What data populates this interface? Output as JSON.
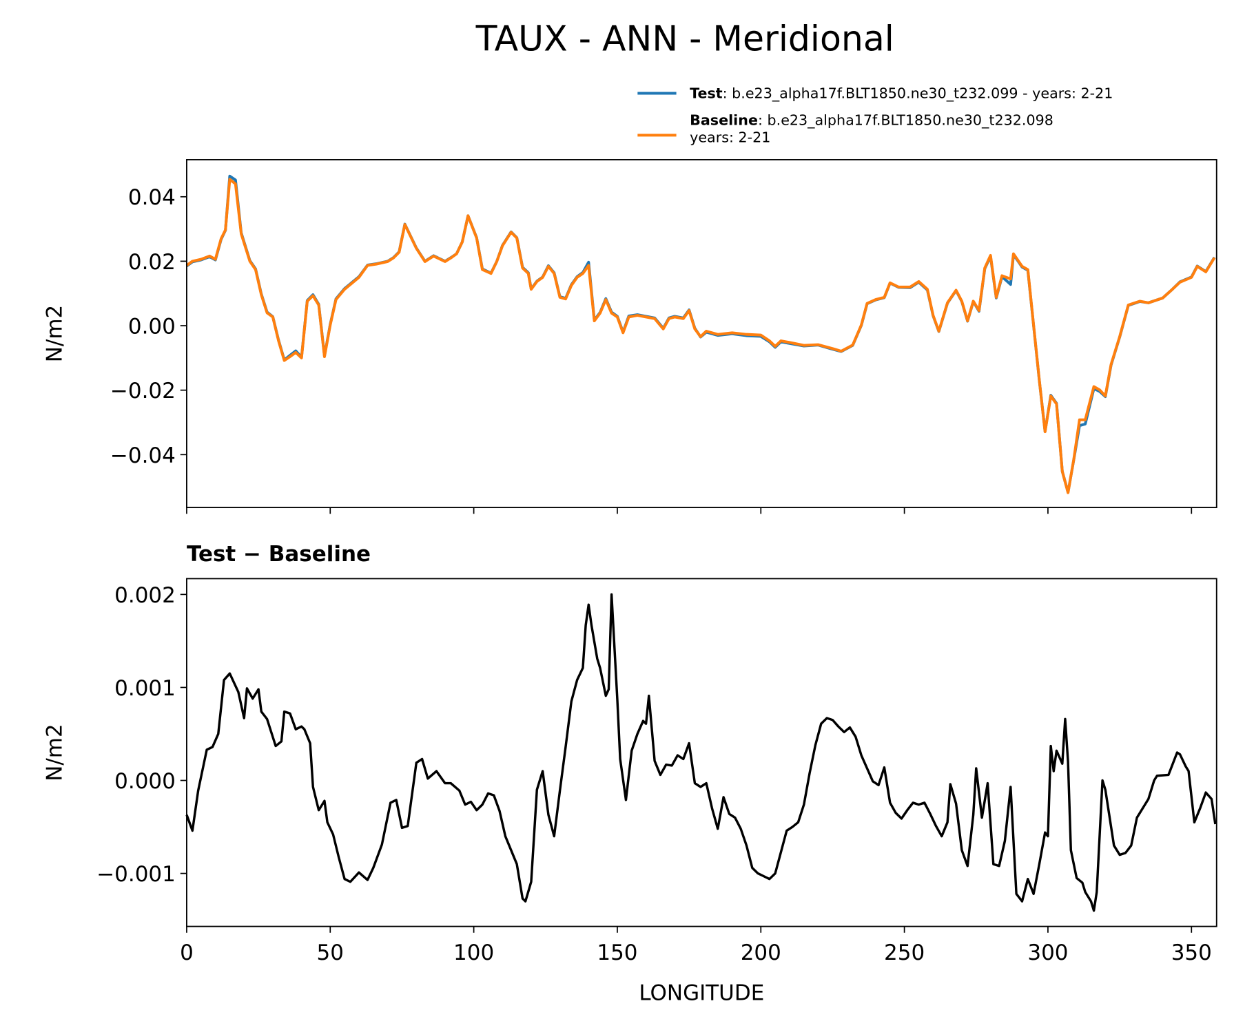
{
  "chart_data": [
    {
      "type": "line",
      "title": "TAUX - ANN - Meridional",
      "ylabel": "N/m2",
      "x": [
        0,
        2,
        5,
        8,
        10,
        12,
        13.5,
        15,
        17,
        19,
        22,
        24,
        26,
        28,
        30,
        32,
        34,
        36,
        38,
        40,
        42,
        44,
        46,
        48,
        50,
        52,
        55,
        60,
        63,
        66,
        70,
        72,
        74,
        76,
        80,
        83,
        86,
        90,
        92,
        94,
        96,
        98,
        101,
        103,
        106,
        108,
        110,
        113,
        115,
        117,
        119,
        120,
        122,
        124,
        126,
        128,
        130,
        132,
        134,
        136,
        138,
        140,
        142,
        144,
        146,
        148,
        150,
        152,
        154,
        157,
        160,
        163,
        166,
        168,
        170,
        173,
        175,
        177,
        179,
        181,
        185,
        190,
        195,
        200,
        203,
        205,
        207,
        210,
        215,
        220,
        225,
        228,
        232,
        235,
        237,
        240,
        243,
        245,
        248,
        252,
        255,
        258,
        260,
        262,
        265,
        268,
        270,
        272,
        274,
        276,
        278,
        280,
        282,
        284,
        287,
        288,
        291,
        293,
        295,
        297,
        299,
        301,
        303,
        305,
        307,
        309,
        311,
        313,
        316,
        318,
        320,
        322,
        325,
        328,
        332,
        335,
        340,
        343,
        346,
        350,
        352,
        355,
        358
      ],
      "series": [
        {
          "name": "Test",
          "description": ": b.e23_alpha17f.BLT1850.ne30_t232.099 - years: 2-21",
          "color": "#1f77b4",
          "values": [
            0.0185,
            0.0198,
            0.0204,
            0.0214,
            0.0204,
            0.0268,
            0.0296,
            0.0464,
            0.0452,
            0.0288,
            0.0202,
            0.0176,
            0.0098,
            0.0042,
            0.0028,
            -0.0045,
            -0.0106,
            -0.0092,
            -0.0078,
            -0.0098,
            0.0078,
            0.0096,
            0.0066,
            -0.0094,
            0.0004,
            0.0083,
            0.0115,
            0.0152,
            0.0188,
            0.0192,
            0.02,
            0.0211,
            0.0229,
            0.0315,
            0.0241,
            0.02,
            0.0217,
            0.02,
            0.0211,
            0.0223,
            0.026,
            0.0341,
            0.0273,
            0.0176,
            0.0163,
            0.0199,
            0.0249,
            0.0291,
            0.0273,
            0.0181,
            0.0164,
            0.0114,
            0.0138,
            0.0151,
            0.0186,
            0.0164,
            0.009,
            0.0085,
            0.0127,
            0.0152,
            0.0165,
            0.0197,
            0.0017,
            0.0041,
            0.0084,
            0.0042,
            0.0029,
            -0.002,
            0.003,
            0.0034,
            0.0029,
            0.0024,
            -0.0008,
            0.0024,
            0.0029,
            0.0024,
            0.0049,
            -0.0008,
            -0.0035,
            -0.002,
            -0.003,
            -0.0025,
            -0.0031,
            -0.0033,
            -0.005,
            -0.0067,
            -0.005,
            -0.0055,
            -0.0063,
            -0.006,
            -0.0073,
            -0.008,
            -0.0061,
            0.0001,
            0.0068,
            0.008,
            0.0087,
            0.0132,
            0.0119,
            0.0118,
            0.0135,
            0.0111,
            0.0031,
            -0.0018,
            0.007,
            0.0109,
            0.0075,
            0.0014,
            0.0075,
            0.0045,
            0.0177,
            0.0215,
            0.0086,
            0.0152,
            0.0128,
            0.0221,
            0.0182,
            0.0172,
            0.0001,
            -0.017,
            -0.0328,
            -0.0216,
            -0.0241,
            -0.0452,
            -0.0517,
            -0.0416,
            -0.031,
            -0.0305,
            -0.0195,
            -0.0204,
            -0.022,
            -0.0122,
            -0.0035,
            0.0063,
            0.0075,
            0.0071,
            0.0086,
            0.011,
            0.0136,
            0.0151,
            0.0185,
            0.0168,
            0.0212
          ]
        },
        {
          "name": "Baseline",
          "description": [
            ": b.e23_alpha17f.BLT1850.ne30_t232.098",
            "years: 2-21"
          ],
          "color": "#ff7f0e",
          "values": [
            0.0187,
            0.02,
            0.0206,
            0.0216,
            0.0206,
            0.027,
            0.0297,
            0.0454,
            0.044,
            0.0285,
            0.02,
            0.0174,
            0.0096,
            0.004,
            0.0027,
            -0.0047,
            -0.0108,
            -0.0096,
            -0.0083,
            -0.01,
            0.0076,
            0.0093,
            0.0064,
            -0.0096,
            0.0002,
            0.0081,
            0.0113,
            0.015,
            0.0187,
            0.0191,
            0.0199,
            0.021,
            0.0228,
            0.0314,
            0.024,
            0.0199,
            0.0216,
            0.0199,
            0.021,
            0.0223,
            0.026,
            0.0341,
            0.0272,
            0.0174,
            0.0162,
            0.0199,
            0.0248,
            0.029,
            0.0272,
            0.0179,
            0.0162,
            0.0113,
            0.0137,
            0.015,
            0.0184,
            0.0162,
            0.0088,
            0.0083,
            0.0125,
            0.015,
            0.0162,
            0.0187,
            0.0015,
            0.0039,
            0.0081,
            0.0039,
            0.0027,
            -0.0022,
            0.0027,
            0.0032,
            0.0027,
            0.0022,
            -0.001,
            0.0022,
            0.0027,
            0.0022,
            0.0047,
            -0.001,
            -0.0034,
            -0.0017,
            -0.0027,
            -0.0022,
            -0.0027,
            -0.0029,
            -0.0047,
            -0.0064,
            -0.0047,
            -0.0052,
            -0.0061,
            -0.0059,
            -0.0071,
            -0.0079,
            -0.006,
            0.0002,
            0.0069,
            0.0081,
            0.0088,
            0.0133,
            0.012,
            0.012,
            0.0137,
            0.0113,
            0.0032,
            -0.0017,
            0.0071,
            0.011,
            0.0076,
            0.0015,
            0.0076,
            0.0047,
            0.0179,
            0.0218,
            0.0088,
            0.0155,
            0.0145,
            0.0223,
            0.0184,
            0.0174,
            0.0002,
            -0.0169,
            -0.0329,
            -0.0218,
            -0.0243,
            -0.0452,
            -0.0518,
            -0.0415,
            -0.0292,
            -0.0292,
            -0.0189,
            -0.0199,
            -0.0218,
            -0.012,
            -0.0034,
            0.0064,
            0.0076,
            0.0071,
            0.0086,
            0.011,
            0.0135,
            0.015,
            0.0184,
            0.0167,
            0.0211
          ]
        }
      ],
      "xlim": [
        0,
        358.75
      ],
      "xticks": [
        0,
        50,
        100,
        150,
        200,
        250,
        300,
        350
      ],
      "ylim": [
        -0.0564,
        0.0515
      ],
      "yticks": [
        {
          "value": -0.04,
          "label": "−0.04"
        },
        {
          "value": -0.02,
          "label": "−0.02"
        },
        {
          "value": 0,
          "label": "0.00"
        },
        0.02,
        0.04
      ]
    },
    {
      "type": "line",
      "title": "Test − Baseline",
      "ylabel": "N/m2",
      "xlabel": "LONGITUDE",
      "color": "#000000",
      "x": [
        0,
        2,
        4,
        7,
        9,
        11,
        13,
        15,
        18,
        20,
        21,
        23,
        25,
        26,
        28,
        31,
        33,
        34,
        36,
        38,
        40,
        41,
        43,
        44,
        46,
        48,
        49,
        51,
        53,
        55,
        57,
        60,
        63,
        65,
        68,
        71,
        73,
        75,
        77,
        80,
        82,
        84,
        87,
        90,
        92,
        95,
        97,
        99,
        101,
        103,
        105,
        107,
        109,
        111,
        113,
        115,
        117,
        118,
        120,
        122,
        124,
        126,
        128,
        130,
        132,
        134,
        136,
        138,
        139,
        140,
        141,
        143,
        144,
        146,
        147,
        148,
        150,
        151,
        153,
        155,
        157,
        159,
        160,
        161,
        163,
        165,
        167,
        169,
        171,
        173,
        175,
        177,
        179,
        181,
        183,
        185,
        187,
        189,
        191,
        193,
        195,
        197,
        199,
        201,
        203,
        205,
        207,
        209,
        211,
        213,
        215,
        217,
        219,
        221,
        223,
        225,
        227,
        229,
        231,
        233,
        235,
        237,
        239,
        241,
        243,
        245,
        247,
        249,
        251,
        253,
        255,
        257,
        259,
        261,
        263,
        265,
        266,
        268,
        270,
        272,
        274,
        275,
        277,
        279,
        281,
        283,
        285,
        287,
        289,
        291,
        293,
        295,
        297,
        299,
        300,
        301,
        302,
        303,
        305,
        306,
        307,
        308,
        310,
        312,
        313,
        315,
        316,
        317,
        319,
        320,
        323,
        325,
        327,
        329,
        331,
        335,
        337,
        338,
        342,
        345,
        346,
        348,
        349,
        351,
        353,
        355,
        357,
        358.3
      ],
      "values": [
        -0.00037,
        -0.00054,
        -0.00011,
        0.00033,
        0.00036,
        0.0005,
        0.00108,
        0.00115,
        0.00095,
        0.00067,
        0.00099,
        0.00088,
        0.00098,
        0.00074,
        0.00066,
        0.00037,
        0.00042,
        0.00074,
        0.00072,
        0.00055,
        0.00058,
        0.00055,
        0.0004,
        -7e-05,
        -0.00032,
        -0.00022,
        -0.00045,
        -0.00058,
        -0.00083,
        -0.00106,
        -0.00109,
        -0.00099,
        -0.00107,
        -0.00094,
        -0.00069,
        -0.00024,
        -0.00021,
        -0.00051,
        -0.00049,
        0.00019,
        0.00023,
        2e-05,
        0.0001,
        -3e-05,
        -3e-05,
        -0.00011,
        -0.00026,
        -0.00023,
        -0.00032,
        -0.00026,
        -0.00014,
        -0.00016,
        -0.00033,
        -0.0006,
        -0.00075,
        -0.0009,
        -0.00127,
        -0.0013,
        -0.00109,
        -0.0001,
        0.0001,
        -0.00037,
        -0.0006,
        -0.00011,
        0.00036,
        0.00085,
        0.00108,
        0.00121,
        0.00167,
        0.00189,
        0.00167,
        0.00131,
        0.00121,
        0.00091,
        0.00098,
        0.002,
        0.00087,
        0.00023,
        -0.00021,
        0.00032,
        0.0005,
        0.00064,
        0.00061,
        0.00091,
        0.00021,
        6e-05,
        0.00017,
        0.00016,
        0.00027,
        0.00023,
        0.0004,
        -3e-05,
        -7e-05,
        -3e-05,
        -0.0003,
        -0.00052,
        -0.00018,
        -0.00036,
        -0.0004,
        -0.00052,
        -0.0007,
        -0.00094,
        -0.001,
        -0.00103,
        -0.00106,
        -0.001,
        -0.00077,
        -0.00054,
        -0.0005,
        -0.00045,
        -0.00026,
        8e-05,
        0.00038,
        0.00061,
        0.00067,
        0.00065,
        0.00058,
        0.00052,
        0.00057,
        0.00047,
        0.00027,
        0.00013,
        -1e-05,
        -5e-05,
        0.00014,
        -0.00024,
        -0.00035,
        -0.00041,
        -0.00032,
        -0.00024,
        -0.00026,
        -0.00024,
        -0.00036,
        -0.00049,
        -0.0006,
        -0.00045,
        -4e-05,
        -0.00025,
        -0.00075,
        -0.00092,
        -0.00037,
        0.00013,
        -0.0004,
        -3e-05,
        -0.0009,
        -0.00092,
        -0.00065,
        -7e-05,
        -0.00122,
        -0.0013,
        -0.00106,
        -0.00122,
        -0.0009,
        -0.00056,
        -0.0006,
        0.00037,
        0.0001,
        0.00032,
        0.00018,
        0.00066,
        0.0002,
        -0.00075,
        -0.00105,
        -0.0011,
        -0.0012,
        -0.0013,
        -0.0014,
        -0.0012,
        0,
        -0.0001,
        -0.0007,
        -0.0008,
        -0.00078,
        -0.0007,
        -0.0004,
        -0.0002,
        0,
        5e-05,
        6e-05,
        0.0003,
        0.00028,
        0.00015,
        0.0001,
        -0.00045,
        -0.0003,
        -0.00013,
        -0.0002,
        -0.00047
      ],
      "xlim": [
        0,
        358.75
      ],
      "xticks": [
        0,
        50,
        100,
        150,
        200,
        250,
        300,
        350
      ],
      "ylim": [
        -0.00157,
        0.00217
      ],
      "yticks": [
        {
          "value": -0.001,
          "label": "−0.001"
        },
        {
          "value": 0,
          "label": "0.000"
        },
        0.001,
        0.002
      ]
    }
  ]
}
